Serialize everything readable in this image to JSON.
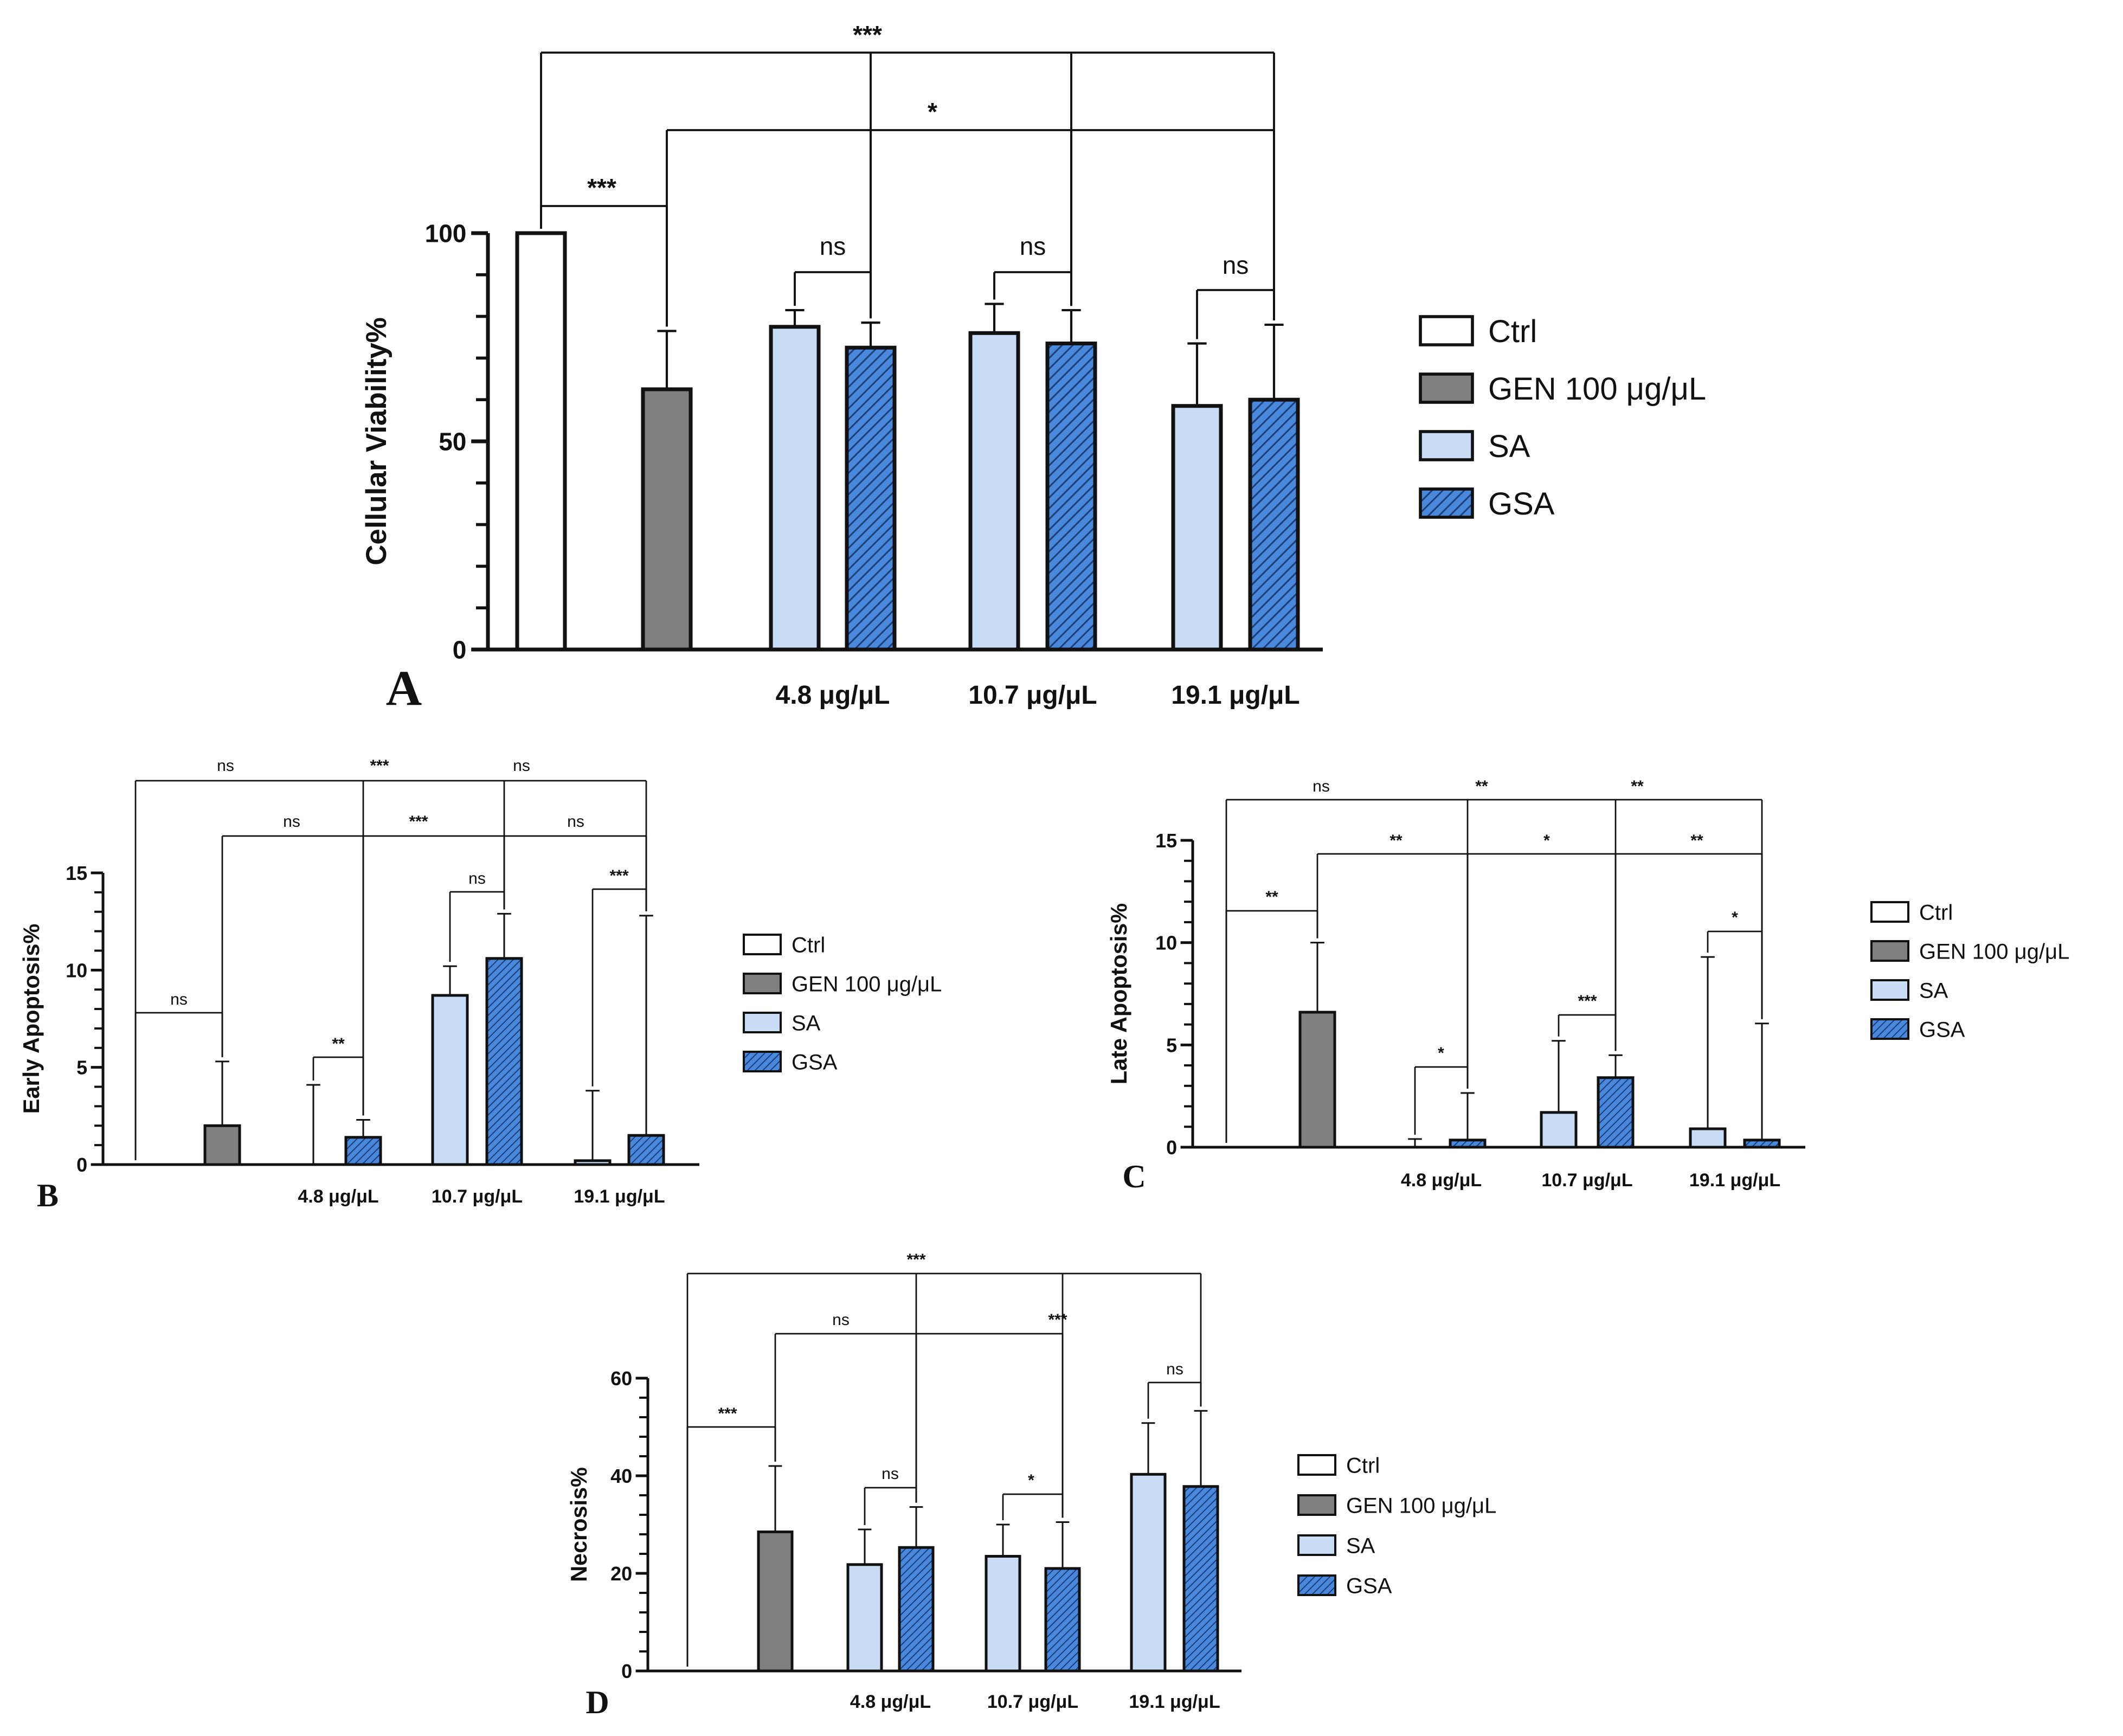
{
  "colors": {
    "ctrl": "#ffffff",
    "gen": "#7f7f7f",
    "sa": "#c9dcf5",
    "gsa": "#4a88db",
    "gsa_hatch": "#1c3f7a",
    "axis": "#111111"
  },
  "legend": {
    "items": [
      {
        "label": "Ctrl",
        "key": "ctrl"
      },
      {
        "label": "GEN 100 μg/μL",
        "key": "gen"
      },
      {
        "label": "SA",
        "key": "sa"
      },
      {
        "label": "GSA",
        "key": "gsa"
      }
    ]
  },
  "chart_data": [
    {
      "panel": "A",
      "type": "bar",
      "ylabel": "Cellular Viability%",
      "ylim": [
        0,
        100
      ],
      "yticks": [
        0,
        50,
        100
      ],
      "group_labels": [
        "4.8 μg/μL",
        "10.7 μg/μL",
        "19.1 μg/μL"
      ],
      "bars": [
        {
          "series": "Ctrl",
          "key": "ctrl",
          "value": 100,
          "err": 0
        },
        {
          "series": "GEN 100 μg/μL",
          "key": "gen",
          "value": 62.5,
          "err": 14
        },
        {
          "series": "SA",
          "key": "sa",
          "group": 0,
          "value": 77.5,
          "err": 4
        },
        {
          "series": "GSA",
          "key": "gsa",
          "group": 0,
          "value": 72.5,
          "err": 6
        },
        {
          "series": "SA",
          "key": "sa",
          "group": 1,
          "value": 76,
          "err": 7
        },
        {
          "series": "GSA",
          "key": "gsa",
          "group": 1,
          "value": 73.5,
          "err": 8
        },
        {
          "series": "SA",
          "key": "sa",
          "group": 2,
          "value": 58.5,
          "err": 15
        },
        {
          "series": "GSA",
          "key": "gsa",
          "group": 2,
          "value": 60,
          "err": 18
        }
      ],
      "comparisons": [
        {
          "label": "***",
          "from": 0,
          "targets": [
            3,
            5,
            7
          ]
        },
        {
          "label": "*",
          "from": 1,
          "targets": [
            3,
            5,
            7
          ]
        },
        {
          "label": "***",
          "from": 0,
          "targets": [
            1
          ]
        },
        {
          "label": "ns",
          "from": 2,
          "targets": [
            3
          ]
        },
        {
          "label": "ns",
          "from": 4,
          "targets": [
            5
          ]
        },
        {
          "label": "ns",
          "from": 6,
          "targets": [
            7
          ]
        }
      ]
    },
    {
      "panel": "B",
      "type": "bar",
      "ylabel": "Early Apoptosis%",
      "ylim": [
        0,
        15
      ],
      "yticks": [
        0,
        5,
        10,
        15
      ],
      "group_labels": [
        "4.8 μg/μL",
        "10.7 μg/μL",
        "19.1 μg/μL"
      ],
      "bars": [
        {
          "series": "Ctrl",
          "key": "ctrl",
          "value": 0,
          "err": 0
        },
        {
          "series": "GEN 100 μg/μL",
          "key": "gen",
          "value": 2,
          "err": 3.3
        },
        {
          "series": "SA",
          "key": "sa",
          "group": 0,
          "value": 0,
          "err": 4.1
        },
        {
          "series": "GSA",
          "key": "gsa",
          "group": 0,
          "value": 1.4,
          "err": 0.9
        },
        {
          "series": "SA",
          "key": "sa",
          "group": 1,
          "value": 8.7,
          "err": 1.5
        },
        {
          "series": "GSA",
          "key": "gsa",
          "group": 1,
          "value": 10.6,
          "err": 2.3
        },
        {
          "series": "SA",
          "key": "sa",
          "group": 2,
          "value": 0.2,
          "err": 3.6
        },
        {
          "series": "GSA",
          "key": "gsa",
          "group": 2,
          "value": 1.5,
          "err": 11.3
        }
      ],
      "comparisons": [
        {
          "label": "ns",
          "from": 0,
          "targets": [
            1
          ]
        },
        {
          "label": "**",
          "from": 2,
          "targets": [
            3
          ]
        },
        {
          "label": "ns",
          "from": 4,
          "targets": [
            5
          ]
        },
        {
          "label": "***",
          "from": 6,
          "targets": [
            7
          ]
        },
        {
          "label": "ns / *** / ns",
          "labels": [
            "ns",
            "***",
            "ns"
          ],
          "from": 1,
          "targets": [
            3,
            5,
            7
          ]
        },
        {
          "label": "ns / *** / ns",
          "labels": [
            "ns",
            "***",
            "ns"
          ],
          "from": 0,
          "targets": [
            3,
            5,
            7
          ]
        }
      ]
    },
    {
      "panel": "C",
      "type": "bar",
      "ylabel": "Late Apoptosis%",
      "ylim": [
        0,
        15
      ],
      "yticks": [
        0,
        5,
        10,
        15
      ],
      "group_labels": [
        "4.8 μg/μL",
        "10.7 μg/μL",
        "19.1 μg/μL"
      ],
      "bars": [
        {
          "series": "Ctrl",
          "key": "ctrl",
          "value": 0,
          "err": 0
        },
        {
          "series": "GEN 100 μg/μL",
          "key": "gen",
          "value": 6.6,
          "err": 3.4
        },
        {
          "series": "SA",
          "key": "sa",
          "group": 0,
          "value": 0,
          "err": 0.4
        },
        {
          "series": "GSA",
          "key": "gsa",
          "group": 0,
          "value": 0.35,
          "err": 2.3
        },
        {
          "series": "SA",
          "key": "sa",
          "group": 1,
          "value": 1.7,
          "err": 3.5
        },
        {
          "series": "GSA",
          "key": "gsa",
          "group": 1,
          "value": 3.4,
          "err": 1.1
        },
        {
          "series": "SA",
          "key": "sa",
          "group": 2,
          "value": 0.9,
          "err": 8.4
        },
        {
          "series": "GSA",
          "key": "gsa",
          "group": 2,
          "value": 0.35,
          "err": 5.7
        }
      ],
      "comparisons": [
        {
          "label": "**",
          "from": 0,
          "targets": [
            1
          ]
        },
        {
          "label": "*",
          "from": 2,
          "targets": [
            3
          ]
        },
        {
          "label": "***",
          "from": 4,
          "targets": [
            5
          ]
        },
        {
          "label": "*",
          "from": 6,
          "targets": [
            7
          ]
        },
        {
          "label": "** / * / **",
          "labels": [
            "**",
            "*",
            "**"
          ],
          "from": 1,
          "targets": [
            3,
            5,
            7
          ]
        },
        {
          "label": "ns / ** / **",
          "labels": [
            "ns",
            "**",
            "**"
          ],
          "from": 0,
          "targets": [
            3,
            5,
            7
          ]
        }
      ]
    },
    {
      "panel": "D",
      "type": "bar",
      "ylabel": "Necrosis%",
      "ylim": [
        0,
        60
      ],
      "yticks": [
        0,
        20,
        40,
        60
      ],
      "group_labels": [
        "4.8 μg/μL",
        "10.7 μg/μL",
        "19.1 μg/μL"
      ],
      "bars": [
        {
          "series": "Ctrl",
          "key": "ctrl",
          "value": 0,
          "err": 0
        },
        {
          "series": "GEN 100 μg/μL",
          "key": "gen",
          "value": 28.5,
          "err": 13.5
        },
        {
          "series": "SA",
          "key": "sa",
          "group": 0,
          "value": 21.8,
          "err": 7.2
        },
        {
          "series": "GSA",
          "key": "gsa",
          "group": 0,
          "value": 25.3,
          "err": 8.3
        },
        {
          "series": "SA",
          "key": "sa",
          "group": 1,
          "value": 23.5,
          "err": 6.5
        },
        {
          "series": "GSA",
          "key": "gsa",
          "group": 1,
          "value": 21,
          "err": 9.5
        },
        {
          "series": "SA",
          "key": "sa",
          "group": 2,
          "value": 40.3,
          "err": 10.5
        },
        {
          "series": "GSA",
          "key": "gsa",
          "group": 2,
          "value": 37.8,
          "err": 15.5
        }
      ],
      "comparisons": [
        {
          "label": "***",
          "from": 0,
          "targets": [
            1
          ]
        },
        {
          "label": "ns",
          "from": 2,
          "targets": [
            3
          ]
        },
        {
          "label": "*",
          "from": 4,
          "targets": [
            5
          ]
        },
        {
          "label": "ns",
          "from": 6,
          "targets": [
            7
          ]
        },
        {
          "label": "ns / ***",
          "labels": [
            "ns",
            "***"
          ],
          "from": 1,
          "targets": [
            3,
            5
          ]
        },
        {
          "label": "***",
          "from": 0,
          "targets": [
            3,
            5,
            7
          ]
        }
      ]
    }
  ]
}
